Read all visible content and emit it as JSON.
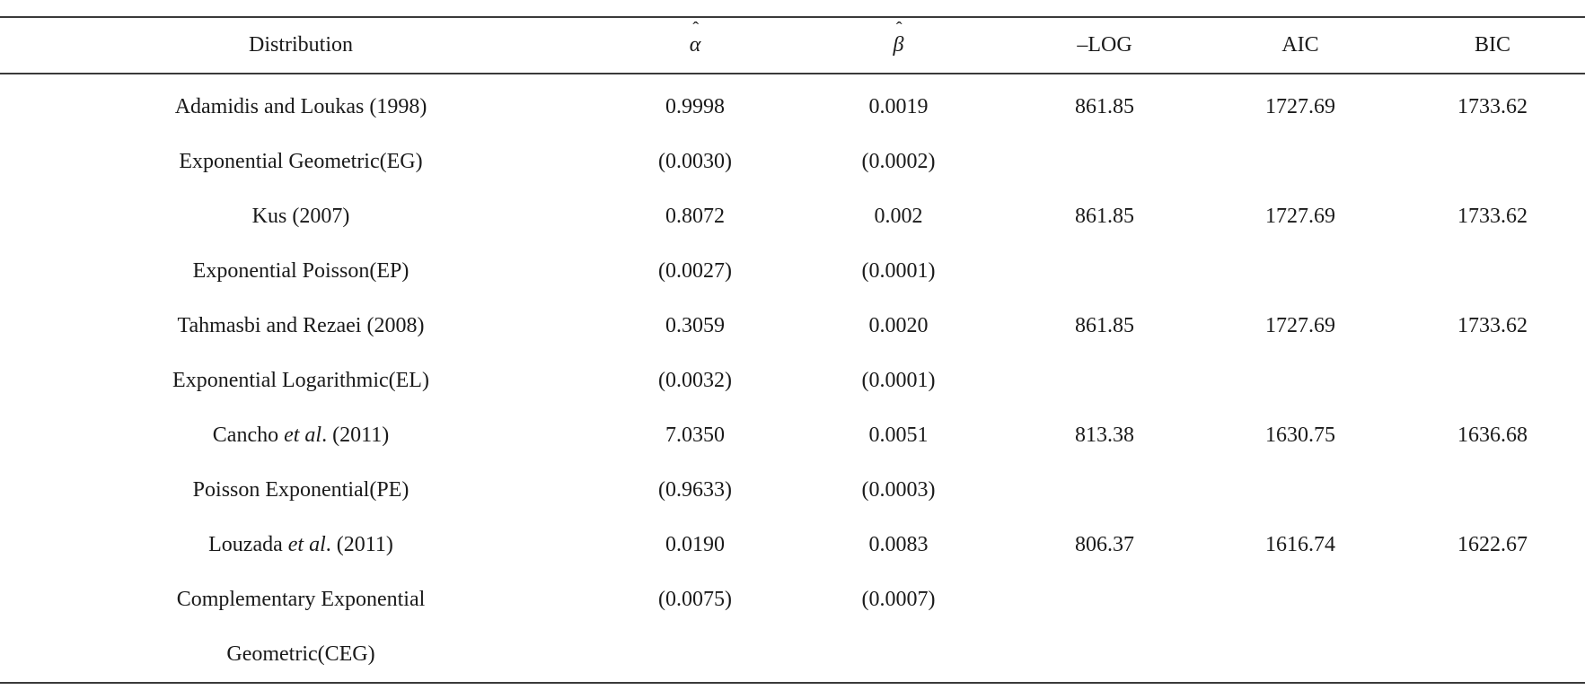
{
  "header": {
    "distribution": "Distribution",
    "alpha": "α",
    "beta": "β",
    "neglog": "–LOG",
    "aic": "AIC",
    "bic": "BIC"
  },
  "rows": [
    {
      "name_pre": "Adamidis and Loukas",
      "name_italic": "",
      "name_post": " (1998)",
      "alpha": "0.9998",
      "beta": "0.0019",
      "neglog": "861.85",
      "aic": "1727.69",
      "bic": "1733.62"
    },
    {
      "name_pre": "Exponential Geometric(EG)",
      "name_italic": "",
      "name_post": "",
      "alpha": "(0.0030)",
      "beta": "(0.0002)",
      "neglog": "",
      "aic": "",
      "bic": ""
    },
    {
      "name_pre": "Kus (2007)",
      "name_italic": "",
      "name_post": "",
      "alpha": "0.8072",
      "beta": "0.002",
      "neglog": "861.85",
      "aic": "1727.69",
      "bic": "1733.62"
    },
    {
      "name_pre": "Exponential Poisson(EP)",
      "name_italic": "",
      "name_post": "",
      "alpha": "(0.0027)",
      "beta": "(0.0001)",
      "neglog": "",
      "aic": "",
      "bic": ""
    },
    {
      "name_pre": "Tahmasbi and Rezaei (2008)",
      "name_italic": "",
      "name_post": "",
      "alpha": "0.3059",
      "beta": "0.0020",
      "neglog": "861.85",
      "aic": "1727.69",
      "bic": "1733.62"
    },
    {
      "name_pre": "Exponential Logarithmic(EL)",
      "name_italic": "",
      "name_post": "",
      "alpha": "(0.0032)",
      "beta": "(0.0001)",
      "neglog": "",
      "aic": "",
      "bic": ""
    },
    {
      "name_pre": "Cancho ",
      "name_italic": "et al",
      "name_post": ". (2011)",
      "alpha": "7.0350",
      "beta": "0.0051",
      "neglog": "813.38",
      "aic": "1630.75",
      "bic": "1636.68"
    },
    {
      "name_pre": "Poisson Exponential(PE)",
      "name_italic": "",
      "name_post": "",
      "alpha": "(0.9633)",
      "beta": "(0.0003)",
      "neglog": "",
      "aic": "",
      "bic": ""
    },
    {
      "name_pre": "Louzada ",
      "name_italic": "et al",
      "name_post": ". (2011)",
      "alpha": "0.0190",
      "beta": "0.0083",
      "neglog": "806.37",
      "aic": "1616.74",
      "bic": "1622.67"
    },
    {
      "name_pre": "Complementary Exponential",
      "name_italic": "",
      "name_post": "",
      "alpha": "(0.0075)",
      "beta": "(0.0007)",
      "neglog": "",
      "aic": "",
      "bic": ""
    },
    {
      "name_pre": "Geometric(CEG)",
      "name_italic": "",
      "name_post": "",
      "alpha": "",
      "beta": "",
      "neglog": "",
      "aic": "",
      "bic": ""
    }
  ]
}
